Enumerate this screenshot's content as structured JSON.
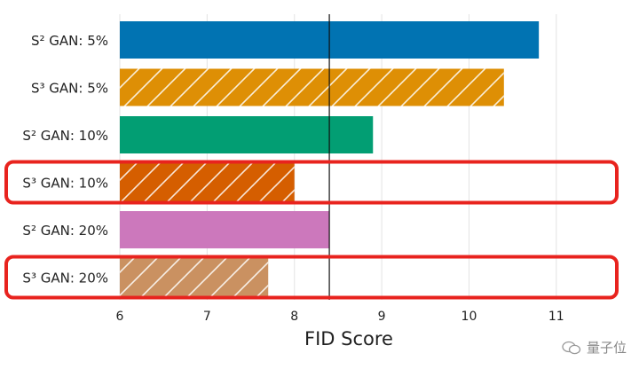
{
  "chart_data": {
    "type": "bar",
    "orientation": "horizontal",
    "xlabel": "FID Score",
    "xlim": [
      6,
      11.5
    ],
    "x_ticks": [
      6,
      7,
      8,
      9,
      10,
      11
    ],
    "grid": true,
    "reference_line": 8.4,
    "categories": [
      {
        "label": "S² GAN: 5%",
        "value": 10.8,
        "color": "#0173b2",
        "hatched": false,
        "highlighted": false
      },
      {
        "label": "S³ GAN: 5%",
        "value": 10.4,
        "color": "#de8f05",
        "hatched": true,
        "highlighted": false
      },
      {
        "label": "S² GAN: 10%",
        "value": 8.9,
        "color": "#029e73",
        "hatched": false,
        "highlighted": false
      },
      {
        "label": "S³ GAN: 10%",
        "value": 8.0,
        "color": "#d55e00",
        "hatched": true,
        "highlighted": true
      },
      {
        "label": "S² GAN: 20%",
        "value": 8.4,
        "color": "#cc78bc",
        "hatched": false,
        "highlighted": false
      },
      {
        "label": "S³ GAN: 20%",
        "value": 7.7,
        "color": "#ca9161",
        "hatched": true,
        "highlighted": true
      }
    ],
    "highlight_color": "#e8231e"
  },
  "watermark": "量子位"
}
